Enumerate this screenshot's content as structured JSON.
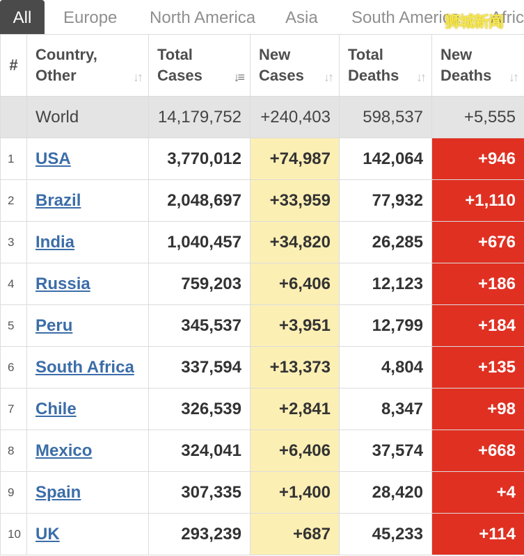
{
  "tabs": [
    "All",
    "Europe",
    "North America",
    "Asia",
    "South America",
    "Africa"
  ],
  "watermark": "狮城新闻",
  "columns": [
    "#",
    "Country,\nOther",
    "Total\nCases",
    "New\nCases",
    "Total\nDeaths",
    "New\nDeaths"
  ],
  "world": {
    "country": "World",
    "total_cases": "14,179,752",
    "new_cases": "+240,403",
    "total_deaths": "598,537",
    "new_deaths": "+5,555"
  },
  "rows": [
    {
      "rank": "1",
      "country": "USA",
      "total_cases": "3,770,012",
      "new_cases": "+74,987",
      "total_deaths": "142,064",
      "new_deaths": "+946"
    },
    {
      "rank": "2",
      "country": "Brazil",
      "total_cases": "2,048,697",
      "new_cases": "+33,959",
      "total_deaths": "77,932",
      "new_deaths": "+1,110"
    },
    {
      "rank": "3",
      "country": "India",
      "total_cases": "1,040,457",
      "new_cases": "+34,820",
      "total_deaths": "26,285",
      "new_deaths": "+676"
    },
    {
      "rank": "4",
      "country": "Russia",
      "total_cases": "759,203",
      "new_cases": "+6,406",
      "total_deaths": "12,123",
      "new_deaths": "+186"
    },
    {
      "rank": "5",
      "country": "Peru",
      "total_cases": "345,537",
      "new_cases": "+3,951",
      "total_deaths": "12,799",
      "new_deaths": "+184"
    },
    {
      "rank": "6",
      "country": "South Africa",
      "total_cases": "337,594",
      "new_cases": "+13,373",
      "total_deaths": "4,804",
      "new_deaths": "+135"
    },
    {
      "rank": "7",
      "country": "Chile",
      "total_cases": "326,539",
      "new_cases": "+2,841",
      "total_deaths": "8,347",
      "new_deaths": "+98"
    },
    {
      "rank": "8",
      "country": "Mexico",
      "total_cases": "324,041",
      "new_cases": "+6,406",
      "total_deaths": "37,574",
      "new_deaths": "+668"
    },
    {
      "rank": "9",
      "country": "Spain",
      "total_cases": "307,335",
      "new_cases": "+1,400",
      "total_deaths": "28,420",
      "new_deaths": "+4"
    },
    {
      "rank": "10",
      "country": "UK",
      "total_cases": "293,239",
      "new_cases": "+687",
      "total_deaths": "45,233",
      "new_deaths": "+114"
    }
  ],
  "colors": {
    "new_cases_bg": "#fcefb4",
    "new_deaths_bg": "#e03022",
    "link": "#3b6da8",
    "active_tab": "#4a4a4a"
  }
}
